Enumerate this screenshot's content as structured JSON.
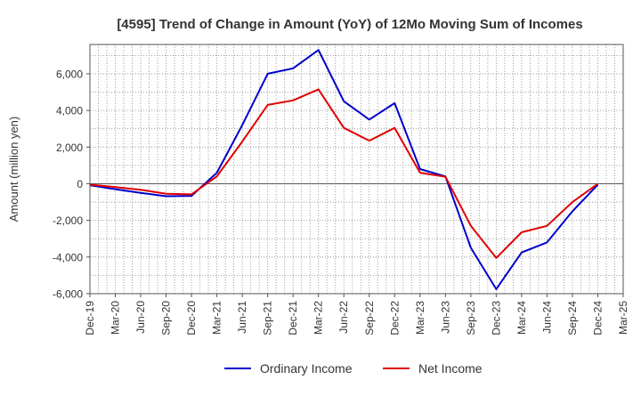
{
  "chart_data": {
    "type": "line",
    "title": "[4595]  Trend of Change in Amount (YoY) of 12Mo Moving Sum of Incomes",
    "xlabel": "",
    "ylabel": "Amount (million yen)",
    "ylim": [
      -6000,
      7600
    ],
    "yticks": [
      -6000,
      -4000,
      -2000,
      0,
      2000,
      4000,
      6000
    ],
    "ytick_labels": [
      "-6,000",
      "-4,000",
      "-2,000",
      "0",
      "2,000",
      "4,000",
      "6,000"
    ],
    "categories": [
      "Dec-19",
      "Mar-20",
      "Jun-20",
      "Sep-20",
      "Dec-20",
      "Mar-21",
      "Jun-21",
      "Sep-21",
      "Dec-21",
      "Mar-22",
      "Jun-22",
      "Sep-22",
      "Dec-22",
      "Mar-23",
      "Jun-23",
      "Sep-23",
      "Dec-23",
      "Mar-24",
      "Jun-24",
      "Sep-24",
      "Dec-24",
      "Mar-25"
    ],
    "grid": true,
    "legend_position": "bottom-center",
    "series": [
      {
        "name": "Ordinary Income",
        "color": "#0000cc",
        "values": [
          -80,
          -300,
          -500,
          -680,
          -660,
          600,
          3200,
          6000,
          6300,
          7300,
          4500,
          3500,
          4400,
          800,
          400,
          -3500,
          -5750,
          -3750,
          -3200,
          -1500,
          -50,
          null
        ]
      },
      {
        "name": "Net Income",
        "color": "#e00000",
        "values": [
          -50,
          -180,
          -330,
          -550,
          -580,
          400,
          2300,
          4300,
          4550,
          5150,
          3050,
          2350,
          3050,
          600,
          380,
          -2300,
          -4050,
          -2650,
          -2300,
          -1000,
          0,
          null
        ]
      }
    ]
  }
}
